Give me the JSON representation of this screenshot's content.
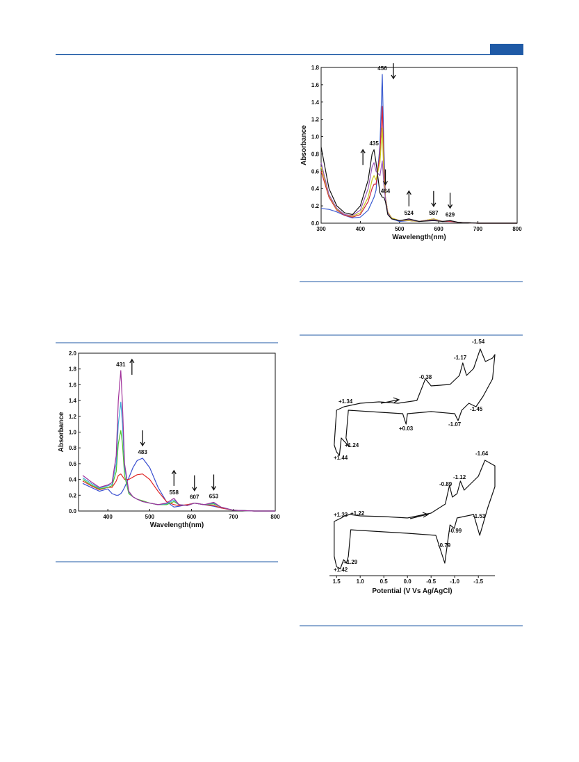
{
  "chart_data": [
    {
      "type": "line",
      "xlabel": "Wavelength(nm)",
      "ylabel": "Absorbance",
      "x": [
        300,
        320,
        340,
        360,
        380,
        400,
        420,
        430,
        435,
        440,
        450,
        456,
        460,
        464,
        470,
        480,
        500,
        524,
        550,
        587,
        610,
        629,
        650,
        700,
        750,
        800
      ],
      "series": [
        {
          "color": "#3a5bd0",
          "values": [
            0.17,
            0.16,
            0.13,
            0.09,
            0.06,
            0.07,
            0.15,
            0.25,
            0.3,
            0.38,
            0.9,
            1.72,
            0.9,
            0.3,
            0.12,
            0.05,
            0.02,
            0.03,
            0.02,
            0.04,
            0.02,
            0.02,
            0.01,
            0,
            0,
            0
          ]
        },
        {
          "color": "#d0213a",
          "values": [
            0.6,
            0.3,
            0.15,
            0.09,
            0.07,
            0.1,
            0.25,
            0.4,
            0.45,
            0.45,
            0.8,
            1.35,
            0.7,
            0.3,
            0.13,
            0.06,
            0.03,
            0.03,
            0.02,
            0.05,
            0.02,
            0.02,
            0.01,
            0,
            0,
            0
          ]
        },
        {
          "color": "#c8c81e",
          "values": [
            0.65,
            0.32,
            0.16,
            0.1,
            0.08,
            0.12,
            0.3,
            0.5,
            0.55,
            0.5,
            0.7,
            1.1,
            0.55,
            0.3,
            0.13,
            0.06,
            0.03,
            0.03,
            0.02,
            0.05,
            0.02,
            0.03,
            0.01,
            0,
            0,
            0
          ]
        },
        {
          "color": "#9a58b8",
          "values": [
            0.7,
            0.33,
            0.17,
            0.1,
            0.09,
            0.15,
            0.4,
            0.65,
            0.7,
            0.6,
            0.55,
            0.72,
            0.45,
            0.28,
            0.12,
            0.05,
            0.03,
            0.04,
            0.02,
            0.04,
            0.02,
            0.03,
            0.01,
            0,
            0,
            0
          ]
        },
        {
          "color": "#111111",
          "values": [
            0.88,
            0.4,
            0.2,
            0.12,
            0.1,
            0.2,
            0.5,
            0.8,
            0.85,
            0.7,
            0.35,
            0.3,
            0.3,
            0.25,
            0.1,
            0.05,
            0.03,
            0.05,
            0.02,
            0.03,
            0.02,
            0.03,
            0.01,
            0,
            0,
            0
          ]
        }
      ],
      "xlim": [
        300,
        800
      ],
      "xticks": [
        300,
        400,
        500,
        600,
        700,
        800
      ],
      "ylim": [
        0,
        1.8
      ],
      "yticks": [
        {
          "value": 0,
          "label": "0.0"
        },
        0.2,
        0.4,
        0.6,
        0.8,
        {
          "value": 1,
          "label": "1.0"
        },
        1.2,
        1.4,
        1.6,
        1.8
      ],
      "annotations": [
        {
          "x": 456,
          "arrow": "down"
        },
        {
          "x": 435,
          "arrow": "up"
        },
        {
          "x": 464,
          "arrow": "down"
        },
        {
          "x": 524,
          "arrow": "up"
        },
        {
          "x": 587,
          "arrow": "down"
        },
        {
          "x": 629,
          "arrow": "down"
        }
      ]
    },
    {
      "type": "line",
      "xlabel": "Wavelength(nm)",
      "ylabel": "Absorbance",
      "x": [
        340,
        360,
        380,
        400,
        410,
        420,
        425,
        431,
        435,
        440,
        450,
        460,
        470,
        483,
        500,
        520,
        540,
        558,
        570,
        590,
        607,
        630,
        653,
        670,
        700,
        750,
        800
      ],
      "series": [
        {
          "color": "#3a4fd0",
          "values": [
            0.35,
            0.3,
            0.25,
            0.28,
            0.22,
            0.2,
            0.2,
            0.22,
            0.25,
            0.3,
            0.42,
            0.55,
            0.64,
            0.67,
            0.55,
            0.3,
            0.12,
            0.05,
            0.06,
            0.08,
            0.1,
            0.08,
            0.06,
            0.04,
            0.01,
            0,
            0
          ]
        },
        {
          "color": "#e02a2a",
          "values": [
            0.38,
            0.32,
            0.27,
            0.3,
            0.3,
            0.38,
            0.45,
            0.47,
            0.44,
            0.4,
            0.4,
            0.43,
            0.46,
            0.47,
            0.4,
            0.25,
            0.12,
            0.08,
            0.07,
            0.08,
            0.1,
            0.08,
            0.07,
            0.04,
            0.01,
            0,
            0
          ]
        },
        {
          "color": "#4fc02a",
          "values": [
            0.4,
            0.33,
            0.28,
            0.3,
            0.32,
            0.5,
            0.85,
            1.02,
            0.85,
            0.45,
            0.22,
            0.18,
            0.15,
            0.13,
            0.1,
            0.08,
            0.08,
            0.12,
            0.08,
            0.07,
            0.1,
            0.08,
            0.09,
            0.05,
            0.01,
            0,
            0
          ]
        },
        {
          "color": "#3aa8d8",
          "values": [
            0.42,
            0.35,
            0.29,
            0.32,
            0.34,
            0.6,
            1.1,
            1.38,
            1.1,
            0.55,
            0.24,
            0.18,
            0.15,
            0.12,
            0.1,
            0.08,
            0.09,
            0.14,
            0.08,
            0.07,
            0.1,
            0.08,
            0.1,
            0.05,
            0.01,
            0,
            0
          ]
        },
        {
          "color": "#a0309a",
          "values": [
            0.45,
            0.37,
            0.3,
            0.33,
            0.36,
            0.7,
            1.4,
            1.78,
            1.35,
            0.6,
            0.25,
            0.18,
            0.15,
            0.12,
            0.1,
            0.08,
            0.1,
            0.16,
            0.08,
            0.07,
            0.1,
            0.08,
            0.11,
            0.05,
            0.01,
            0,
            0
          ]
        }
      ],
      "xlim": [
        330,
        800
      ],
      "xticks": [
        400,
        500,
        600,
        700,
        800
      ],
      "ylim": [
        0,
        2
      ],
      "yticks": [
        {
          "value": 0,
          "label": "0.0"
        },
        0.2,
        0.4,
        0.6,
        0.8,
        {
          "value": 1,
          "label": "1.0"
        },
        1.2,
        1.4,
        1.6,
        1.8,
        {
          "value": 2,
          "label": "2.0"
        }
      ],
      "annotations": [
        {
          "x": 431,
          "arrow": "up"
        },
        {
          "x": 483,
          "arrow": "down"
        },
        {
          "x": 558,
          "arrow": "up"
        },
        {
          "x": 607,
          "arrow": "down"
        },
        {
          "x": 653,
          "arrow": "down"
        }
      ]
    },
    {
      "type": "line",
      "xlabel": "Potential (V Vs Ag/AgCl)",
      "xlim": [
        1.65,
        -1.85
      ],
      "xticks": [
        1.5,
        {
          "value": 1,
          "label": "1.0"
        },
        0.5,
        {
          "value": 0,
          "label": "0.0"
        },
        -0.5,
        {
          "value": -1,
          "label": "-1.0"
        },
        -1.5
      ],
      "ylim": [
        -0.6,
        1.1
      ],
      "series": [
        {
          "color": "#111111",
          "x": [
            0.6,
            0.2,
            -0.2,
            -0.38,
            -0.5,
            -0.9,
            -1.1,
            -1.17,
            -1.25,
            -1.4,
            -1.54,
            -1.65,
            -1.8,
            -1.85,
            -1.8,
            -1.6,
            -1.45,
            -1.3,
            -1.15,
            -1.07,
            -1.0,
            -0.5,
            0.0,
            0.03,
            0.1,
            0.8,
            1.25,
            1.3,
            1.24,
            1.4,
            1.44,
            1.5,
            1.55,
            1.5,
            1.34,
            1.0,
            0.6
          ],
          "values": [
            0.22,
            0.2,
            0.24,
            0.55,
            0.45,
            0.47,
            0.6,
            0.78,
            0.6,
            0.7,
            0.98,
            0.8,
            0.85,
            0.9,
            0.55,
            0.3,
            0.15,
            0.2,
            0.1,
            -0.05,
            0.05,
            0.08,
            0.05,
            -0.1,
            0.05,
            0.08,
            0.1,
            -0.3,
            -0.42,
            -0.3,
            -0.55,
            -0.5,
            -0.4,
            0.1,
            0.15,
            0.2,
            0.22
          ],
          "annotations": [
            "-1.54",
            "-1.17",
            "-0.38",
            "+1.34",
            "-1.45",
            "+1.24",
            "+0.03",
            "-1.07",
            "+1.44"
          ]
        },
        {
          "color": "#111111",
          "x": [
            0.0,
            -0.5,
            -0.8,
            -0.89,
            -0.95,
            -1.05,
            -1.12,
            -1.2,
            -1.5,
            -1.64,
            -1.85,
            -1.85,
            -1.7,
            -1.53,
            -1.4,
            -1.05,
            -0.99,
            -0.9,
            -0.79,
            -0.6,
            0.0,
            0.5,
            1.2,
            1.25,
            1.29,
            1.35,
            1.42,
            1.5,
            1.55,
            1.55,
            1.4,
            1.33,
            1.22,
            1.0,
            0.5,
            0.0
          ],
          "values": [
            0.25,
            0.32,
            0.45,
            0.72,
            0.55,
            0.6,
            0.78,
            0.65,
            0.85,
            1.08,
            1.0,
            0.7,
            0.4,
            0.0,
            0.3,
            0.25,
            0.1,
            0.15,
            -0.4,
            0.0,
            0.03,
            0.05,
            0.08,
            -0.3,
            -0.4,
            -0.35,
            -0.48,
            -0.45,
            -0.3,
            0.2,
            0.25,
            0.28,
            0.3,
            0.28,
            0.27,
            0.25
          ],
          "annotations": [
            "-1.64",
            "-0.89",
            "-1.12",
            "+1.33",
            "+1.22",
            "-1.53",
            "-0.99",
            "-0.79",
            "+1.29",
            "+1.42"
          ]
        }
      ]
    }
  ]
}
